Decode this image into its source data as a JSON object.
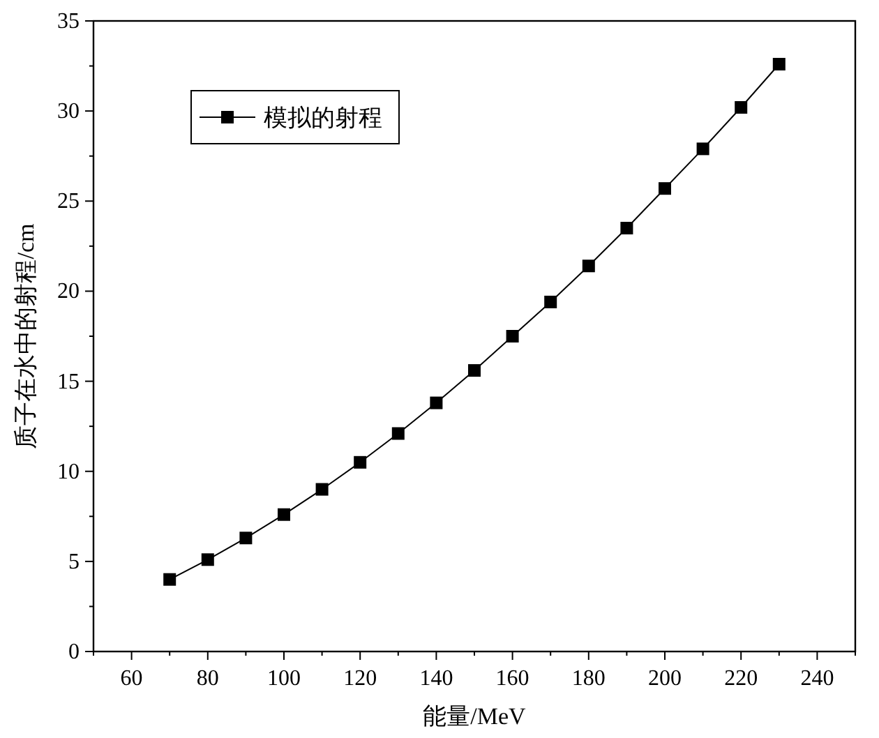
{
  "chart_data": {
    "type": "line",
    "xlabel": "能量/MeV",
    "ylabel": "质子在水中的射程/cm",
    "x": [
      70,
      80,
      90,
      100,
      110,
      120,
      130,
      140,
      150,
      160,
      170,
      180,
      190,
      200,
      210,
      220,
      230
    ],
    "series": [
      {
        "name": "模拟的射程",
        "color": "#000000",
        "values": [
          4.0,
          5.1,
          6.3,
          7.6,
          9.0,
          10.5,
          12.1,
          13.8,
          15.6,
          17.5,
          19.4,
          21.4,
          23.5,
          25.7,
          27.9,
          30.2,
          32.6
        ]
      }
    ],
    "xlim": [
      50,
      250
    ],
    "ylim": [
      0,
      35
    ],
    "xticks": [
      60,
      80,
      100,
      120,
      140,
      160,
      180,
      200,
      220,
      240
    ],
    "yticks": [
      0,
      5,
      10,
      15,
      20,
      25,
      30,
      35
    ],
    "legend": "top left",
    "marker": "square",
    "line_style": "solid",
    "grid": false
  }
}
